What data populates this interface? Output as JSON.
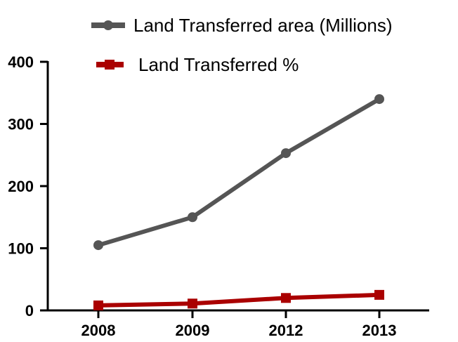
{
  "chart_data": {
    "type": "line",
    "categories": [
      "2008",
      "2009",
      "2012",
      "2013"
    ],
    "series": [
      {
        "name": "Land Transferred area (Millions)",
        "values": [
          105,
          150,
          253,
          340
        ],
        "color": "#555555",
        "marker": "circle"
      },
      {
        "name": "Land Transferred %",
        "values": [
          8,
          11,
          20,
          25
        ],
        "color": "#aa0000",
        "marker": "square"
      }
    ],
    "yticks": [
      0,
      100,
      200,
      300,
      400
    ],
    "ylim": [
      0,
      400
    ],
    "grid": false,
    "legend_position": "top"
  }
}
